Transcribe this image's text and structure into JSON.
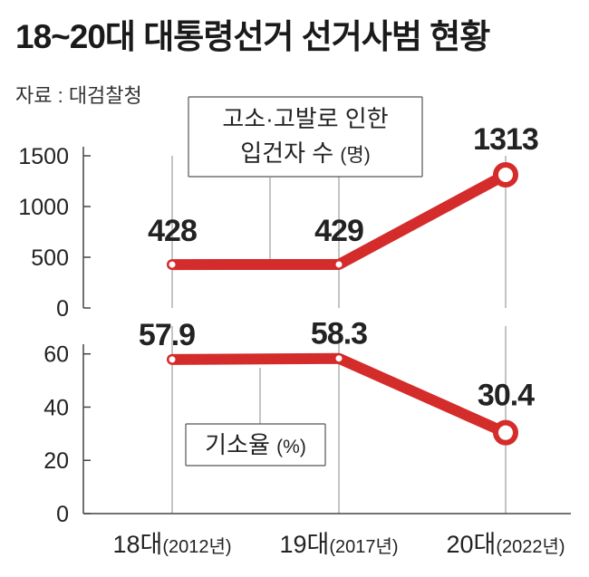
{
  "header": {
    "title": "18~20대 대통령선거 선거사범 현황",
    "source": "자료 : 대검찰청"
  },
  "chart_data": [
    {
      "type": "line",
      "label": "고소·고발로 인한",
      "label_line2": "입건자 수",
      "unit": "(명)",
      "categories": [
        "18대",
        "19대",
        "20대"
      ],
      "category_years": [
        "(2012년)",
        "(2017년)",
        "(2022년)"
      ],
      "values": [
        428,
        429,
        1313
      ],
      "value_labels": [
        "428",
        "429",
        "1313"
      ],
      "yticks": [
        0,
        500,
        1000,
        1500
      ],
      "ylim": [
        0,
        1500
      ],
      "color": "#d42b2b"
    },
    {
      "type": "line",
      "label": "기소율",
      "unit": "(%)",
      "categories": [
        "18대",
        "19대",
        "20대"
      ],
      "category_years": [
        "(2012년)",
        "(2017년)",
        "(2022년)"
      ],
      "values": [
        57.9,
        58.3,
        30.4
      ],
      "value_labels": [
        "57.9",
        "58.3",
        "30.4"
      ],
      "yticks": [
        0,
        20,
        40,
        60
      ],
      "ylim": [
        0,
        65
      ],
      "color": "#d42b2b"
    }
  ]
}
